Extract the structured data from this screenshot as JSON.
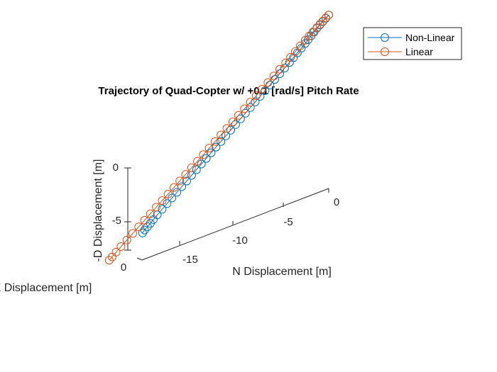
{
  "chart_data": {
    "type": "line3d",
    "title": "Trajectory of Quad-Copter w/ +0.1 [rad/s] Pitch Rate",
    "xlabel": "N Displacement [m]",
    "ylabel": "E Displacement [m]",
    "zlabel": "-D Displacement [m]",
    "x_ticks": [
      "-15",
      "-10",
      "-5",
      "0"
    ],
    "y_ticks": [
      "0"
    ],
    "z_ticks": [
      "-5",
      "0"
    ],
    "legend": {
      "placement": "top-right",
      "entries": [
        "Non-Linear",
        "Linear"
      ]
    },
    "grid": false,
    "marker": "circle",
    "series": [
      {
        "name": "Non-Linear",
        "color": "#0072BD",
        "points": [
          [
            0.0,
            0,
            7.6
          ],
          [
            -0.3,
            0,
            7.4
          ],
          [
            -0.6,
            0,
            7.2
          ],
          [
            -0.9,
            0,
            7.0
          ],
          [
            -1.2,
            0,
            6.8
          ],
          [
            -1.5,
            0,
            6.55
          ],
          [
            -1.8,
            0,
            6.3
          ],
          [
            -2.1,
            0,
            6.05
          ],
          [
            -2.4,
            0,
            5.8
          ],
          [
            -2.8,
            0,
            5.5
          ],
          [
            -3.2,
            0,
            5.2
          ],
          [
            -3.6,
            0,
            4.9
          ],
          [
            -4.0,
            0,
            4.6
          ],
          [
            -4.5,
            0,
            4.25
          ],
          [
            -5.0,
            0,
            3.9
          ],
          [
            -5.5,
            0,
            3.55
          ],
          [
            -6.0,
            0,
            3.2
          ],
          [
            -6.5,
            0,
            2.85
          ],
          [
            -7.0,
            0,
            2.5
          ],
          [
            -7.5,
            0,
            2.15
          ],
          [
            -8.0,
            0,
            1.8
          ],
          [
            -8.5,
            0,
            1.45
          ],
          [
            -9.0,
            0,
            1.1
          ],
          [
            -9.5,
            0,
            0.75
          ],
          [
            -10.0,
            0,
            0.4
          ],
          [
            -10.5,
            0,
            0.05
          ],
          [
            -11.0,
            0,
            -0.3
          ],
          [
            -11.5,
            0,
            -0.65
          ],
          [
            -12.0,
            0,
            -1.0
          ],
          [
            -12.5,
            0,
            -1.35
          ],
          [
            -13.0,
            0,
            -1.7
          ],
          [
            -13.5,
            0,
            -2.05
          ],
          [
            -14.0,
            0,
            -2.4
          ],
          [
            -14.5,
            0,
            -2.75
          ],
          [
            -15.0,
            0,
            -3.1
          ],
          [
            -15.5,
            0,
            -3.45
          ],
          [
            -16.0,
            0,
            -3.8
          ],
          [
            -16.5,
            0,
            -4.15
          ],
          [
            -17.0,
            0,
            -4.5
          ],
          [
            -17.5,
            0,
            -4.85
          ],
          [
            -17.9,
            0,
            -5.15
          ],
          [
            -18.2,
            0,
            -5.4
          ],
          [
            -18.5,
            0,
            -5.6
          ],
          [
            -18.8,
            0,
            -5.8
          ],
          [
            -19.0,
            0,
            -6.0
          ]
        ]
      },
      {
        "name": "Linear",
        "color": "#D95319",
        "points": [
          [
            0.0,
            0,
            7.6
          ],
          [
            -0.3,
            0,
            7.45
          ],
          [
            -0.6,
            0,
            7.25
          ],
          [
            -0.9,
            0,
            7.05
          ],
          [
            -1.2,
            0,
            6.85
          ],
          [
            -1.6,
            0,
            6.6
          ],
          [
            -2.0,
            0,
            6.35
          ],
          [
            -2.4,
            0,
            6.1
          ],
          [
            -2.9,
            0,
            5.75
          ],
          [
            -3.4,
            0,
            5.4
          ],
          [
            -3.9,
            0,
            5.05
          ],
          [
            -4.4,
            0,
            4.7
          ],
          [
            -5.0,
            0,
            4.3
          ],
          [
            -5.6,
            0,
            3.9
          ],
          [
            -6.2,
            0,
            3.5
          ],
          [
            -6.8,
            0,
            3.1
          ],
          [
            -7.4,
            0,
            2.7
          ],
          [
            -8.0,
            0,
            2.3
          ],
          [
            -8.6,
            0,
            1.9
          ],
          [
            -9.2,
            0,
            1.5
          ],
          [
            -9.8,
            0,
            1.1
          ],
          [
            -10.4,
            0,
            0.7
          ],
          [
            -11.0,
            0,
            0.3
          ],
          [
            -11.6,
            0,
            -0.1
          ],
          [
            -12.2,
            0,
            -0.5
          ],
          [
            -12.8,
            0,
            -0.9
          ],
          [
            -13.4,
            0,
            -1.3
          ],
          [
            -14.0,
            0,
            -1.7
          ],
          [
            -14.6,
            0,
            -2.1
          ],
          [
            -15.2,
            0,
            -2.5
          ],
          [
            -15.8,
            0,
            -2.9
          ],
          [
            -16.4,
            0,
            -3.3
          ],
          [
            -17.0,
            0,
            -3.7
          ],
          [
            -17.6,
            0,
            -4.1
          ],
          [
            -18.2,
            0,
            -4.5
          ],
          [
            -18.8,
            0,
            -4.9
          ],
          [
            -19.4,
            0,
            -5.3
          ],
          [
            -20.0,
            0,
            -5.7
          ],
          [
            -20.6,
            0,
            -6.1
          ],
          [
            -21.2,
            0,
            -6.5
          ],
          [
            -21.7,
            0,
            -6.85
          ],
          [
            -22.1,
            0,
            -7.15
          ],
          [
            -22.4,
            0,
            -7.35
          ]
        ]
      }
    ]
  }
}
